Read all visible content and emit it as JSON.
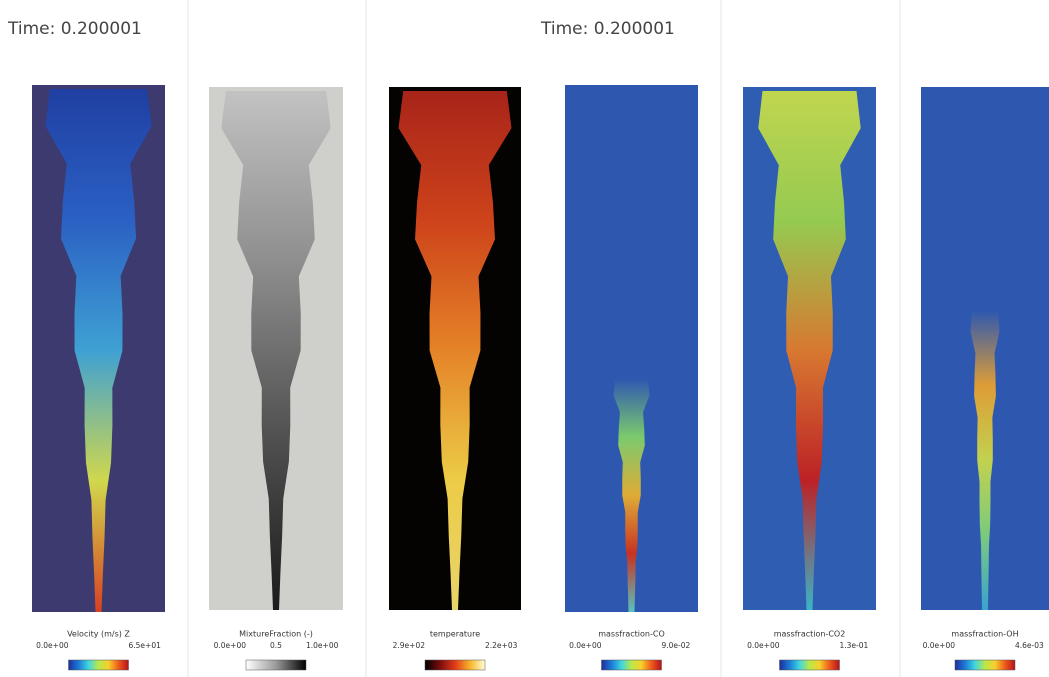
{
  "header": {
    "left_time": "Time: 0.200001",
    "right_time": "Time: 0.200001"
  },
  "panels": [
    {
      "title": "Velocity (m/s) Z",
      "ticks": [
        "0.0e+00",
        "6.5e+01"
      ]
    },
    {
      "title": "MixtureFraction (-)",
      "ticks": [
        "0.0e+00",
        "0.5",
        "1.0e+00"
      ]
    },
    {
      "title": "temperature",
      "ticks": [
        "2.9e+02",
        "2.2e+03"
      ]
    },
    {
      "title": "massfraction-CO",
      "ticks": [
        "0.0e+00",
        "9.0e-02"
      ]
    },
    {
      "title": "massfraction-CO2",
      "ticks": [
        "0.0e+00",
        "1.3e-01"
      ]
    },
    {
      "title": "massfraction-OH",
      "ticks": [
        "0.0e+00",
        "4.6e-03"
      ]
    }
  ]
}
